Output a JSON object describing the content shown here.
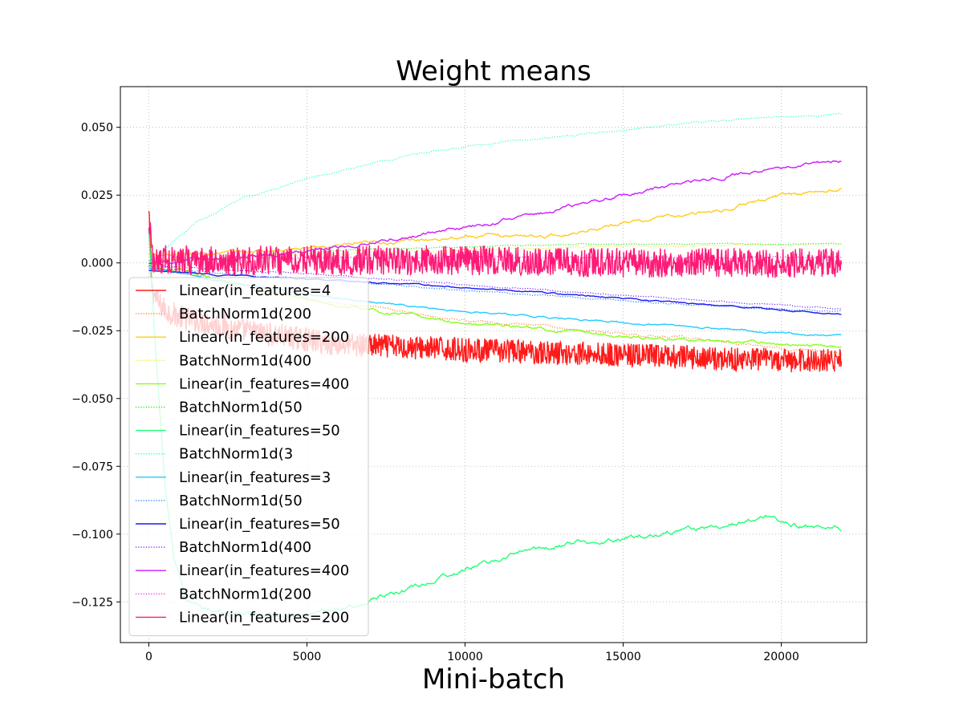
{
  "chart_data": {
    "type": "line",
    "title": "Weight means",
    "xlabel": "Mini-batch",
    "ylabel": "",
    "xlim": [
      -900,
      22700
    ],
    "ylim": [
      -0.14,
      0.065
    ],
    "xticks": [
      0,
      5000,
      10000,
      15000,
      20000
    ],
    "xtick_labels": [
      "0",
      "5000",
      "10000",
      "15000",
      "20000"
    ],
    "yticks": [
      0.05,
      0.025,
      0.0,
      -0.025,
      -0.05,
      -0.075,
      -0.1,
      -0.125
    ],
    "ytick_labels": [
      "0.050",
      "0.025",
      "0.000",
      "−0.025",
      "−0.050",
      "−0.075",
      "−0.100",
      "−0.125"
    ],
    "grid": true,
    "legend_position": "lower-left",
    "series": [
      {
        "name": "Linear(in_features=4",
        "color": "#ff1a1a",
        "style": "solid",
        "noise": 0.0045,
        "x": [
          0,
          100,
          300,
          600,
          1000,
          3000,
          6000,
          10000,
          15000,
          20000,
          21900
        ],
        "values": [
          0.018,
          -0.01,
          -0.015,
          -0.018,
          -0.02,
          -0.025,
          -0.03,
          -0.032,
          -0.034,
          -0.036,
          -0.036
        ]
      },
      {
        "name": "BatchNorm1d(200",
        "color": "#ff7f2a",
        "style": "dotted",
        "noise": 0.0006,
        "x": [
          0,
          1000,
          3000,
          6000,
          10000,
          15000,
          20000,
          21900
        ],
        "values": [
          0.0,
          -0.003,
          -0.008,
          -0.015,
          -0.021,
          -0.026,
          -0.031,
          -0.033
        ]
      },
      {
        "name": "Linear(in_features=200",
        "color": "#ffcc1a",
        "style": "solid",
        "noise": 0.0008,
        "x": [
          0,
          1000,
          3000,
          6000,
          10000,
          13000,
          15000,
          18000,
          20000,
          21900
        ],
        "values": [
          0.003,
          0.003,
          0.004,
          0.006,
          0.01,
          0.01,
          0.015,
          0.019,
          0.025,
          0.027
        ]
      },
      {
        "name": "BatchNorm1d(400",
        "color": "#eeee22",
        "style": "dotted",
        "noise": 0.0004,
        "x": [
          0,
          5000,
          10000,
          15000,
          21900
        ],
        "values": [
          0.001,
          0.003,
          0.005,
          0.006,
          0.007
        ]
      },
      {
        "name": "Linear(in_features=400",
        "color": "#88ff1a",
        "style": "solid",
        "noise": 0.0007,
        "x": [
          0,
          1000,
          3000,
          6000,
          10000,
          15000,
          21900
        ],
        "values": [
          -0.001,
          -0.003,
          -0.008,
          -0.016,
          -0.022,
          -0.027,
          -0.031
        ]
      },
      {
        "name": "BatchNorm1d(50",
        "color": "#22ee22",
        "style": "dotted",
        "noise": 0.0003,
        "x": [
          0,
          5000,
          10000,
          15000,
          21900
        ],
        "values": [
          0.0,
          0.004,
          0.006,
          0.007,
          0.007
        ]
      },
      {
        "name": "Linear(in_features=50",
        "color": "#22ff77",
        "style": "solid",
        "noise": 0.0012,
        "x": [
          0,
          200,
          500,
          800,
          1200,
          2000,
          3000,
          5000,
          7500,
          10000,
          12000,
          15000,
          17500,
          19500,
          20500,
          21900
        ],
        "values": [
          0.012,
          -0.03,
          -0.08,
          -0.11,
          -0.125,
          -0.128,
          -0.13,
          -0.13,
          -0.123,
          -0.113,
          -0.106,
          -0.101,
          -0.098,
          -0.094,
          -0.097,
          -0.098
        ]
      },
      {
        "name": "BatchNorm1d(3",
        "color": "#22ffcc",
        "style": "dotted",
        "noise": 0.0004,
        "x": [
          0,
          500,
          1500,
          3000,
          5000,
          7500,
          10000,
          12500,
          15000,
          17500,
          20000,
          21900
        ],
        "values": [
          0.0,
          0.005,
          0.015,
          0.024,
          0.031,
          0.038,
          0.043,
          0.046,
          0.049,
          0.052,
          0.054,
          0.055
        ]
      },
      {
        "name": "Linear(in_features=3",
        "color": "#22ccff",
        "style": "solid",
        "noise": 0.0004,
        "x": [
          0,
          1000,
          3000,
          6000,
          10000,
          15000,
          21900
        ],
        "values": [
          -0.002,
          -0.004,
          -0.008,
          -0.013,
          -0.018,
          -0.022,
          -0.027
        ]
      },
      {
        "name": "BatchNorm1d(50",
        "color": "#2277ff",
        "style": "dotted",
        "noise": 0.0003,
        "x": [
          0,
          5000,
          10000,
          15000,
          21900
        ],
        "values": [
          -0.002,
          -0.006,
          -0.01,
          -0.014,
          -0.018
        ]
      },
      {
        "name": "Linear(in_features=50",
        "color": "#1a1aee",
        "style": "solid",
        "noise": 0.0003,
        "x": [
          0,
          5000,
          10000,
          15000,
          21900
        ],
        "values": [
          -0.003,
          -0.006,
          -0.009,
          -0.013,
          -0.019
        ]
      },
      {
        "name": "BatchNorm1d(400",
        "color": "#7722ff",
        "style": "dotted",
        "noise": 0.0003,
        "x": [
          0,
          5000,
          10000,
          15000,
          21900
        ],
        "values": [
          -0.001,
          -0.004,
          -0.008,
          -0.012,
          -0.017
        ]
      },
      {
        "name": "Linear(in_features=400",
        "color": "#cc1aff",
        "style": "solid",
        "noise": 0.0008,
        "x": [
          0,
          3000,
          6000,
          10000,
          14000,
          17000,
          20000,
          21900
        ],
        "values": [
          0.0,
          0.002,
          0.006,
          0.013,
          0.022,
          0.03,
          0.035,
          0.038
        ]
      },
      {
        "name": "BatchNorm1d(200",
        "color": "#ff22ee",
        "style": "dotted",
        "noise": 0.0003,
        "x": [
          0,
          5000,
          10000,
          15000,
          21900
        ],
        "values": [
          0.001,
          0.002,
          0.002,
          0.002,
          0.002
        ]
      },
      {
        "name": "Linear(in_features=200",
        "color": "#ff1a77",
        "style": "solid",
        "noise": 0.0055,
        "x": [
          0,
          100,
          300,
          1000,
          5000,
          10000,
          15000,
          21900
        ],
        "values": [
          0.017,
          0.002,
          0.001,
          0.001,
          0.001,
          0.001,
          0.0,
          0.0
        ]
      }
    ]
  }
}
